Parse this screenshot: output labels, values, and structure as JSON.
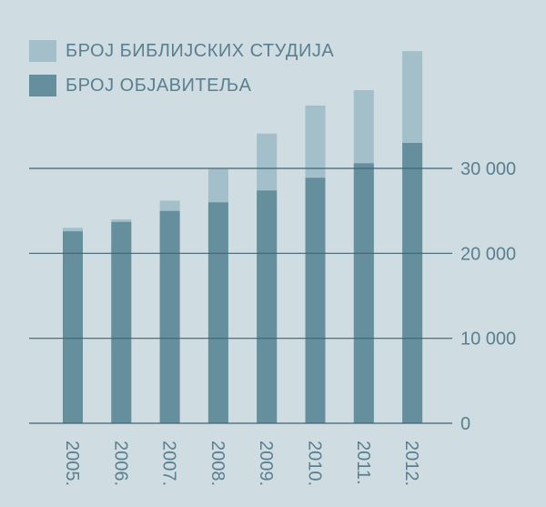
{
  "colors": {
    "background": "#cfdde3",
    "bible_studies": "#a2bfca",
    "publishers": "#658f9d",
    "grid": "#3f6472",
    "text": "#5a7f8e"
  },
  "legend": [
    {
      "key": "bible_studies",
      "label": "БРОЈ БИБЛИЈСКИХ СТУДИЈА"
    },
    {
      "key": "publishers",
      "label": "БРОЈ ОБЈАВИТЕЉА"
    }
  ],
  "chart_data": {
    "type": "bar",
    "categories": [
      "2005.",
      "2006.",
      "2007.",
      "2008.",
      "2009.",
      "2010.",
      "2011.",
      "2012."
    ],
    "series": [
      {
        "key": "publishers",
        "name": "БРОЈ ОБЈАВИТЕЉА",
        "values": [
          22600,
          23700,
          25000,
          26000,
          27400,
          28900,
          30600,
          33000
        ]
      },
      {
        "key": "bible_studies",
        "name": "БРОЈ БИБЛИЈСКИХ СТУДИЈА",
        "values": [
          23000,
          24000,
          26200,
          29900,
          34100,
          37400,
          39200,
          43800
        ]
      }
    ],
    "ylim": [
      0,
      45000
    ],
    "yticks": [
      0,
      10000,
      20000,
      30000
    ],
    "ytick_labels": [
      "0",
      "10 000",
      "20 000",
      "30 000"
    ],
    "grid": true,
    "legend_position": "top-left",
    "ytick_position": "right",
    "xtick_rotation": "90"
  }
}
